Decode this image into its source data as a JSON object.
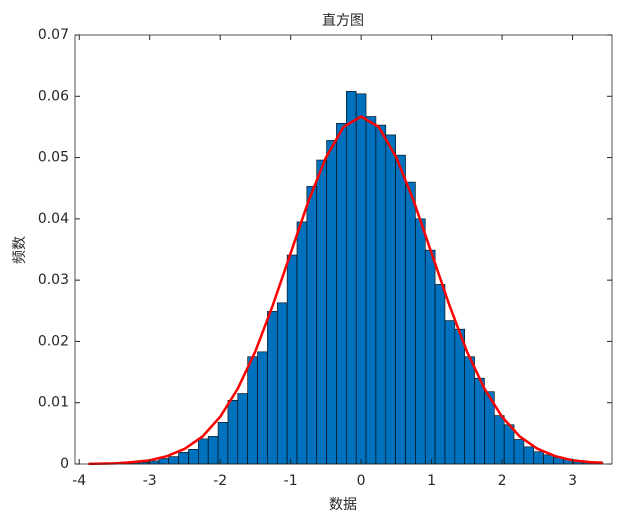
{
  "chart_data": {
    "type": "histogram",
    "title": "直方图",
    "xlabel": "数据",
    "ylabel": "频数",
    "bins": [
      -3.43,
      -3.29,
      -3.15,
      -3.01,
      -2.87,
      -2.73,
      -2.59,
      -2.45,
      -2.31,
      -2.17,
      -2.03,
      -1.89,
      -1.75,
      -1.61,
      -1.47,
      -1.33,
      -1.19,
      -1.05,
      -0.91,
      -0.77,
      -0.63,
      -0.49,
      -0.35,
      -0.21,
      -0.07,
      0.07,
      0.21,
      0.35,
      0.49,
      0.63,
      0.77,
      0.91,
      1.05,
      1.19,
      1.33,
      1.47,
      1.61,
      1.75,
      1.89,
      2.03,
      2.17,
      2.31,
      2.45,
      2.59,
      2.73,
      2.87,
      3.01,
      3.15,
      3.29,
      3.43
    ],
    "values": [
      0.0001,
      0.0002,
      0.0003,
      0.0005,
      0.0009,
      0.0012,
      0.0019,
      0.0024,
      0.0041,
      0.0045,
      0.0068,
      0.0104,
      0.0115,
      0.0175,
      0.0183,
      0.0249,
      0.0263,
      0.0341,
      0.0395,
      0.0453,
      0.0496,
      0.0528,
      0.0556,
      0.0608,
      0.0604,
      0.0567,
      0.0553,
      0.0537,
      0.0504,
      0.046,
      0.04,
      0.0349,
      0.0293,
      0.0234,
      0.022,
      0.0175,
      0.014,
      0.0118,
      0.0079,
      0.0064,
      0.004,
      0.0028,
      0.002,
      0.0015,
      0.0011,
      0.0008,
      0.0005,
      0.0003,
      0.0002
    ],
    "color": "#0072bd",
    "edgecolor": "#000000",
    "fit": {
      "type": "line",
      "color": "#ff0000",
      "x": [
        -3.87,
        -3.5,
        -3.25,
        -3,
        -2.75,
        -2.5,
        -2.25,
        -2,
        -1.75,
        -1.5,
        -1.25,
        -1,
        -0.75,
        -0.5,
        -0.25,
        0,
        0.25,
        0.5,
        0.75,
        1,
        1.25,
        1.5,
        1.75,
        2,
        2.25,
        2.5,
        2.75,
        3,
        3.25,
        3.43
      ],
      "values": [
        3e-05,
        0.0001,
        0.0003,
        0.0006,
        0.0013,
        0.0025,
        0.0045,
        0.0077,
        0.0123,
        0.0184,
        0.026,
        0.0344,
        0.0428,
        0.05,
        0.055,
        0.0567,
        0.055,
        0.05,
        0.0428,
        0.0344,
        0.026,
        0.0184,
        0.0123,
        0.0077,
        0.0045,
        0.0025,
        0.0013,
        0.0006,
        0.0003,
        0.0002
      ]
    },
    "xlim": [
      -4.06,
      3.56
    ],
    "ylim": [
      0,
      0.07
    ],
    "xticks": [
      -4,
      -3,
      -2,
      -1,
      0,
      1,
      2,
      3
    ],
    "yticks": [
      0,
      0.01,
      0.02,
      0.03,
      0.04,
      0.05,
      0.06,
      0.07
    ]
  }
}
